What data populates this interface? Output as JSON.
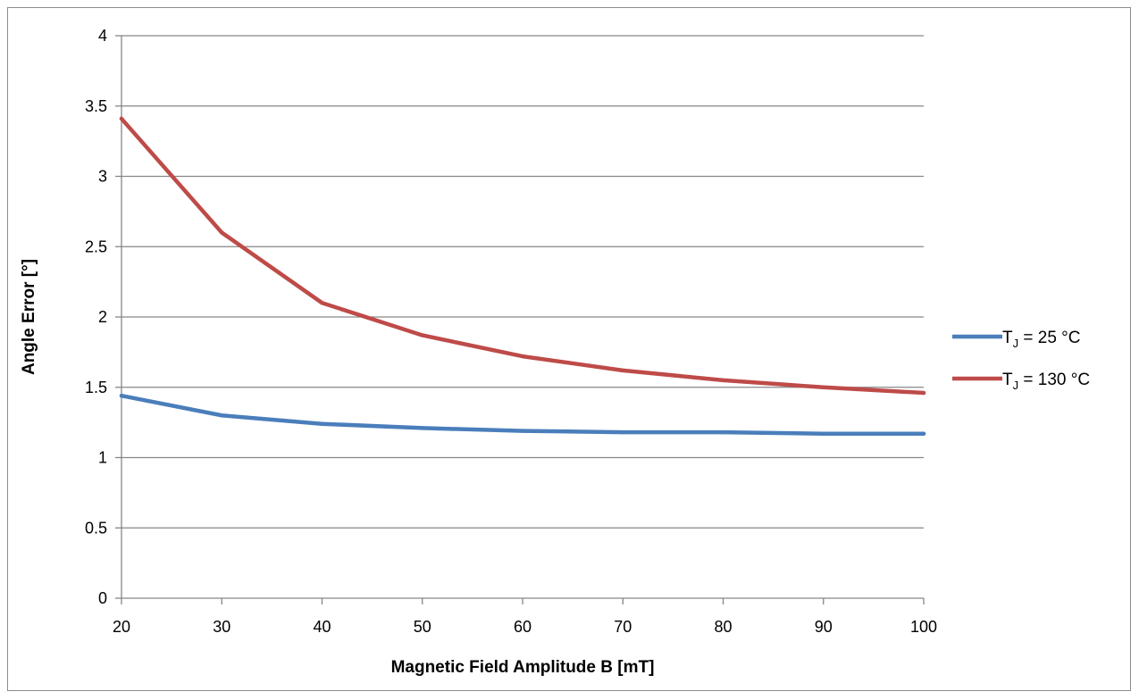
{
  "chart_data": {
    "type": "line",
    "title": "",
    "xlabel": "Magnetic Field Amplitude B [mT]",
    "ylabel": "Angle Error [°]",
    "x": [
      20,
      30,
      40,
      50,
      60,
      70,
      80,
      90,
      100
    ],
    "xticks": [
      "20",
      "30",
      "40",
      "50",
      "60",
      "70",
      "80",
      "90",
      "100"
    ],
    "yticks": [
      "0",
      "0.5",
      "1",
      "1.5",
      "2",
      "2.5",
      "3",
      "3.5",
      "4"
    ],
    "xlim": [
      20,
      100
    ],
    "ylim": [
      0,
      4
    ],
    "grid": "horizontal",
    "legend_position": "right",
    "series": [
      {
        "name": "TJ = 25 °C",
        "name_main": "T",
        "name_sub": "J",
        "name_rest": " = 25 °C",
        "color": "#4a7ebb",
        "values": [
          1.44,
          1.3,
          1.24,
          1.21,
          1.19,
          1.18,
          1.18,
          1.17,
          1.17
        ]
      },
      {
        "name": "TJ = 130 °C",
        "name_main": "T",
        "name_sub": "J",
        "name_rest": " = 130 °C",
        "color": "#be4b48",
        "values": [
          3.41,
          2.6,
          2.1,
          1.87,
          1.72,
          1.62,
          1.55,
          1.5,
          1.46
        ]
      }
    ]
  }
}
